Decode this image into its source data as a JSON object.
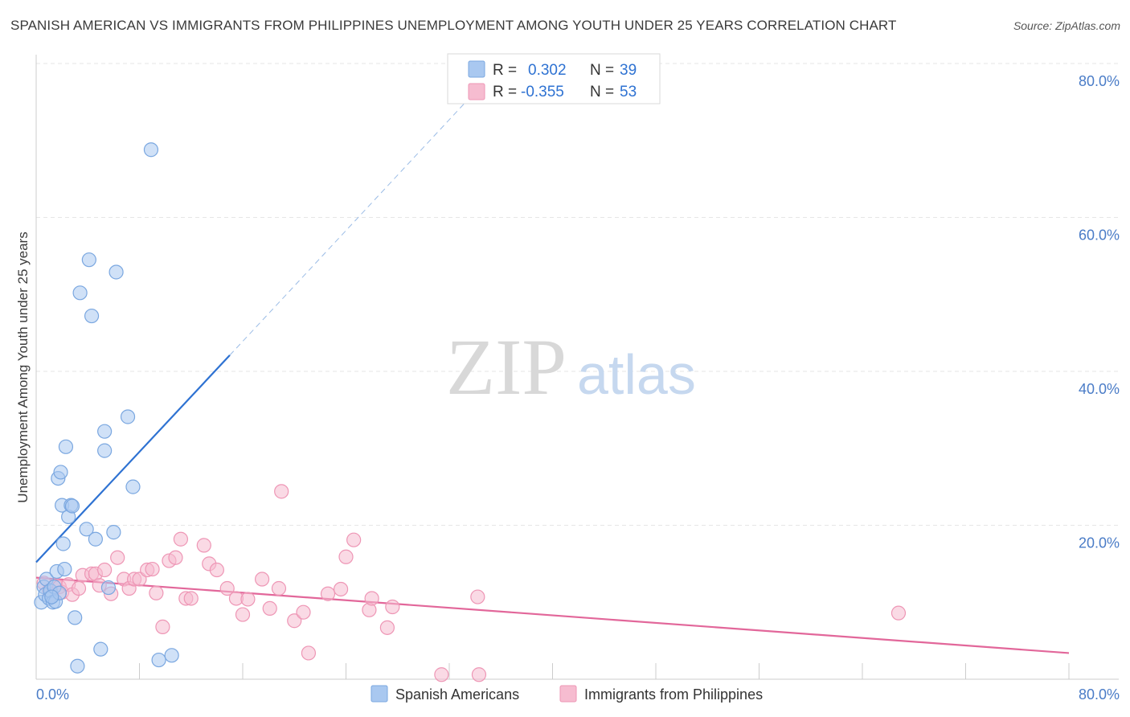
{
  "title": "SPANISH AMERICAN VS IMMIGRANTS FROM PHILIPPINES UNEMPLOYMENT AMONG YOUTH UNDER 25 YEARS CORRELATION CHART",
  "source": "Source: ZipAtlas.com",
  "watermark": {
    "zip": "ZIP",
    "atlas": "atlas"
  },
  "colors": {
    "blue_fill": "#a9c8f0",
    "blue_stroke": "#7aa7e0",
    "blue_line": "#2e72d2",
    "pink_fill": "#f6bcd0",
    "pink_stroke": "#ee96b5",
    "pink_line": "#e2679a",
    "tick_text": "#4a7cc7",
    "grid": "#e6e6e6"
  },
  "legend_top": [
    {
      "r_label": "R =",
      "r_value": "0.302",
      "n_label": "N =",
      "n_value": "39",
      "series": "blue"
    },
    {
      "r_label": "R =",
      "r_value": "-0.355",
      "n_label": "N =",
      "n_value": "53",
      "series": "pink"
    }
  ],
  "chart_data": {
    "type": "scatter",
    "title": "SPANISH AMERICAN VS IMMIGRANTS FROM PHILIPPINES UNEMPLOYMENT AMONG YOUTH UNDER 25 YEARS CORRELATION CHART",
    "xlabel": "",
    "ylabel": "Unemployment Among Youth under 25 years",
    "xlim": [
      0,
      80
    ],
    "ylim": [
      0,
      80
    ],
    "x_tick_labels": [
      "0.0%",
      "80.0%"
    ],
    "y_ticks": [
      {
        "value": 20,
        "label": "20.0%"
      },
      {
        "value": 40,
        "label": "40.0%"
      },
      {
        "value": 60,
        "label": "60.0%"
      },
      {
        "value": 80,
        "label": "80.0%"
      }
    ],
    "legend": [
      "Spanish Americans",
      "Immigrants from Philippines"
    ],
    "series": [
      {
        "name": "Spanish Americans",
        "color": "blue",
        "r": 0.302,
        "n": 39,
        "trend": {
          "x0": 0,
          "y0": 15.2,
          "x1": 15,
          "y1": 42.1,
          "dash_x1": 35,
          "dash_y1": 78.1
        },
        "points": [
          [
            0.4,
            10.0
          ],
          [
            0.6,
            12.0
          ],
          [
            0.7,
            11.0
          ],
          [
            0.8,
            13.0
          ],
          [
            1.0,
            10.5
          ],
          [
            1.1,
            11.5
          ],
          [
            1.3,
            10.0
          ],
          [
            1.4,
            12.0
          ],
          [
            1.5,
            10.1
          ],
          [
            1.6,
            14.0
          ],
          [
            1.8,
            11.2
          ],
          [
            1.7,
            26.1
          ],
          [
            1.9,
            26.9
          ],
          [
            2.0,
            22.6
          ],
          [
            2.1,
            17.6
          ],
          [
            2.2,
            14.3
          ],
          [
            2.3,
            30.2
          ],
          [
            2.5,
            21.1
          ],
          [
            2.7,
            22.6
          ],
          [
            2.8,
            22.5
          ],
          [
            3.0,
            8.0
          ],
          [
            3.2,
            1.7
          ],
          [
            3.9,
            19.5
          ],
          [
            4.1,
            54.5
          ],
          [
            3.4,
            50.2
          ],
          [
            4.3,
            47.2
          ],
          [
            4.6,
            18.2
          ],
          [
            5.0,
            3.9
          ],
          [
            5.3,
            32.2
          ],
          [
            5.3,
            29.7
          ],
          [
            5.6,
            11.9
          ],
          [
            6.0,
            19.1
          ],
          [
            6.2,
            52.9
          ],
          [
            7.1,
            34.1
          ],
          [
            7.5,
            25.0
          ],
          [
            8.9,
            68.8
          ],
          [
            9.5,
            2.5
          ],
          [
            10.5,
            3.1
          ],
          [
            1.2,
            10.7
          ]
        ]
      },
      {
        "name": "Immigrants from Philippines",
        "color": "pink",
        "r": -0.355,
        "n": 53,
        "trend": {
          "x0": 0,
          "y0": 13.2,
          "x1": 80,
          "y1": 3.4
        },
        "points": [
          [
            0.6,
            12.5
          ],
          [
            1.0,
            11.5
          ],
          [
            1.2,
            11.0
          ],
          [
            1.5,
            12.2
          ],
          [
            1.8,
            12.0
          ],
          [
            2.0,
            11.3
          ],
          [
            2.5,
            12.3
          ],
          [
            2.8,
            11.0
          ],
          [
            3.3,
            11.8
          ],
          [
            3.6,
            13.5
          ],
          [
            4.3,
            13.7
          ],
          [
            4.6,
            13.7
          ],
          [
            4.9,
            12.2
          ],
          [
            5.3,
            14.2
          ],
          [
            5.8,
            11.1
          ],
          [
            6.3,
            15.8
          ],
          [
            6.8,
            13.0
          ],
          [
            7.2,
            11.8
          ],
          [
            7.6,
            13.0
          ],
          [
            8.0,
            13.0
          ],
          [
            8.6,
            14.2
          ],
          [
            9.0,
            14.3
          ],
          [
            9.3,
            11.2
          ],
          [
            9.8,
            6.8
          ],
          [
            10.3,
            15.4
          ],
          [
            10.8,
            15.8
          ],
          [
            11.2,
            18.2
          ],
          [
            11.6,
            10.5
          ],
          [
            12.0,
            10.5
          ],
          [
            13.0,
            17.4
          ],
          [
            13.4,
            15.0
          ],
          [
            14.0,
            14.2
          ],
          [
            14.8,
            11.8
          ],
          [
            15.5,
            10.5
          ],
          [
            16.0,
            8.4
          ],
          [
            16.4,
            10.4
          ],
          [
            17.5,
            13.0
          ],
          [
            18.1,
            9.2
          ],
          [
            18.8,
            11.8
          ],
          [
            19.0,
            24.4
          ],
          [
            20.0,
            7.6
          ],
          [
            20.7,
            8.7
          ],
          [
            21.1,
            3.4
          ],
          [
            22.6,
            11.1
          ],
          [
            23.6,
            11.7
          ],
          [
            24.0,
            15.9
          ],
          [
            24.6,
            18.1
          ],
          [
            25.8,
            9.0
          ],
          [
            26.0,
            10.5
          ],
          [
            27.2,
            6.7
          ],
          [
            27.6,
            9.4
          ],
          [
            34.2,
            10.7
          ],
          [
            66.8,
            8.6
          ]
        ],
        "extra_points_near_zero": [
          [
            31.4,
            0.6
          ],
          [
            34.3,
            0.6
          ]
        ]
      }
    ]
  }
}
